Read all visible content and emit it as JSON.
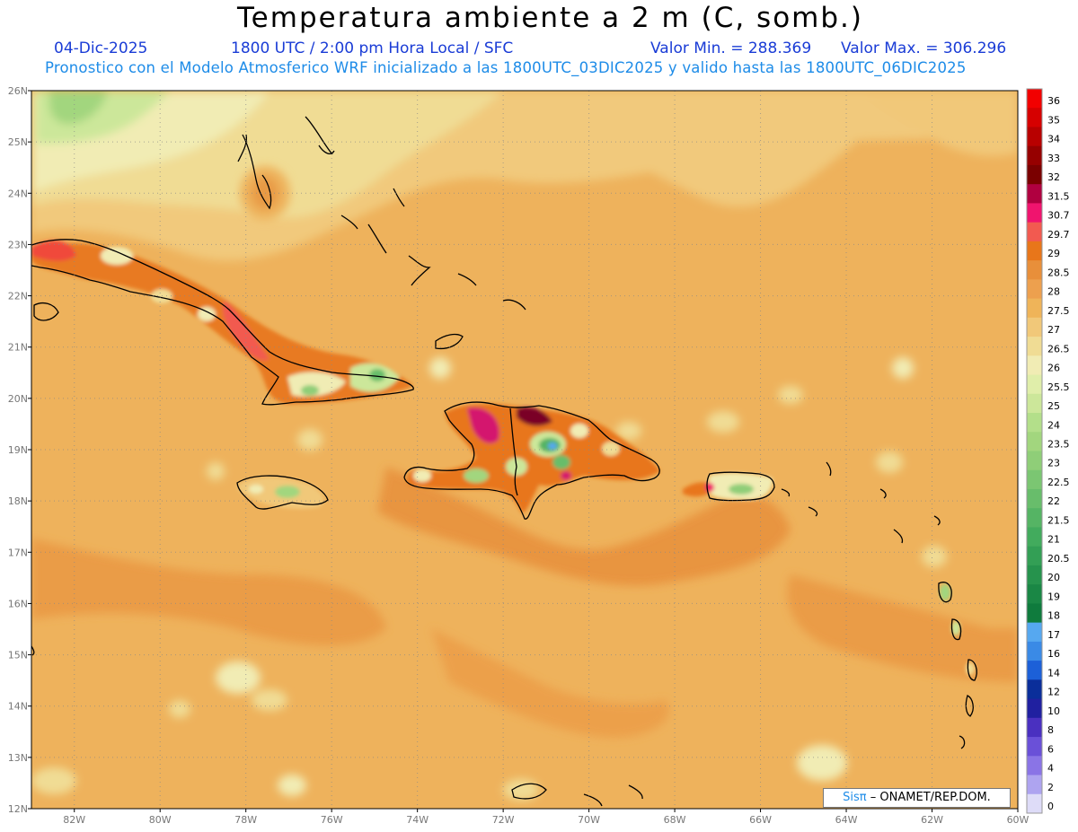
{
  "header": {
    "title": "Temperatura ambiente a 2 m (C, somb.)",
    "date": "04-Dic-2025",
    "time_info": "1800 UTC / 2:00 pm Hora Local / SFC",
    "min_value": "Valor Min. = 288.369",
    "max_value": "Valor Max. = 306.296",
    "model_info": "Pronostico con el Modelo Atmosferico WRF inicializado a las 1800UTC_03DIC2025 y valido hasta las  1800UTC_06DIC2025"
  },
  "axes": {
    "lat_labels": [
      "26N",
      "25N",
      "24N",
      "23N",
      "22N",
      "21N",
      "20N",
      "19N",
      "18N",
      "17N",
      "16N",
      "15N",
      "14N",
      "13N",
      "12N"
    ],
    "lon_labels": [
      "82W",
      "80W",
      "78W",
      "76W",
      "74W",
      "72W",
      "70W",
      "68W",
      "66W",
      "64W",
      "62W",
      "60W"
    ]
  },
  "colorbar": {
    "labels": [
      "36",
      "35",
      "34",
      "33",
      "32",
      "31.5",
      "30.7",
      "29.7",
      "29",
      "28.5",
      "28",
      "27.5",
      "27",
      "26.5",
      "26",
      "25.5",
      "25",
      "24",
      "23.5",
      "23",
      "22.5",
      "22",
      "21.5",
      "21",
      "20.5",
      "20",
      "19",
      "18",
      "17",
      "16",
      "14",
      "12",
      "10",
      "8",
      "6",
      "4",
      "2",
      "0"
    ],
    "colors": [
      "#f20000",
      "#d60000",
      "#b80000",
      "#960000",
      "#7a0000",
      "#b00040",
      "#f0146e",
      "#f25a50",
      "#e8761a",
      "#e88f3a",
      "#eda04e",
      "#efb459",
      "#f1c879",
      "#f0dc94",
      "#f1ecb4",
      "#e0eeaa",
      "#cce79a",
      "#b3df8a",
      "#a2d67e",
      "#8fce78",
      "#7bc672",
      "#68bd6b",
      "#55b464",
      "#42ab5d",
      "#339f55",
      "#26934d",
      "#1a8745",
      "#0f7b3d",
      "#56a8f0",
      "#3a8ae6",
      "#1c60d8",
      "#0a2e9a",
      "#2020a0",
      "#4a30c0",
      "#6a50d8",
      "#8a74e6",
      "#aea4f0",
      "#dedcf8"
    ]
  },
  "credit": {
    "logo_text": "Sisπ",
    "text": "– ONAMET/REP.DOM."
  }
}
